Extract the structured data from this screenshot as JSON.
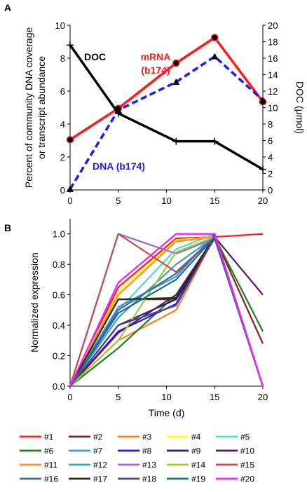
{
  "chart_data": [
    {
      "panel": "A",
      "type": "line",
      "x": [
        0,
        5,
        11,
        15,
        20
      ],
      "xlim": [
        0,
        20
      ],
      "xticks": [
        "0",
        "5",
        "10",
        "15",
        "20"
      ],
      "ylim": [
        0,
        10
      ],
      "yticks": [
        "0",
        "2",
        "4",
        "6",
        "8",
        "10"
      ],
      "y2lim": [
        0,
        20
      ],
      "y2ticks": [
        "0",
        "2",
        "4",
        "6",
        "8",
        "10",
        "12",
        "14",
        "16",
        "18",
        "20"
      ],
      "ylabel_line1": "Percent of community DNA coverage",
      "ylabel_line2": "or transcript abundance",
      "y2label": "DOC (μmol)",
      "series": [
        {
          "name": "mRNA (b174)",
          "label_line1": "mRNA",
          "label_line2": "(b174)",
          "axis": "left",
          "color": "#ff1a1a",
          "marker": "circle",
          "dash": "solid",
          "values": [
            3.05,
            4.95,
            7.7,
            9.25,
            5.35
          ]
        },
        {
          "name": "DNA (b174)",
          "label_line1": "DNA (b174)",
          "axis": "left",
          "color": "#1a1aff",
          "marker": "triangle",
          "dash": "dashed",
          "values": [
            0.05,
            4.85,
            6.55,
            8.1,
            5.45
          ]
        },
        {
          "name": "DOC",
          "label_line1": "DOC",
          "axis": "right",
          "color": "#000000",
          "marker": "plus",
          "dash": "solid",
          "values": [
            17.6,
            9.3,
            5.9,
            5.9,
            2.5
          ]
        }
      ]
    },
    {
      "panel": "B",
      "type": "line",
      "x": [
        0,
        5,
        11,
        15,
        20
      ],
      "xlim": [
        0,
        20
      ],
      "xticks": [
        "0",
        "5",
        "10",
        "15",
        "20"
      ],
      "ylim": [
        0,
        1.1
      ],
      "yticks": [
        "0.0",
        "0.2",
        "0.4",
        "0.6",
        "0.8",
        "1.0"
      ],
      "xlabel": "Time (d)",
      "ylabel": "Normalized expression",
      "series": [
        {
          "name": "#1",
          "color": "#ff1a1a",
          "values": [
            0,
            0.65,
            0.97,
            0.98,
            1.0
          ]
        },
        {
          "name": "#2",
          "color": "#7f1f1f",
          "values": [
            0,
            0.57,
            0.57,
            0.98,
            0.28
          ]
        },
        {
          "name": "#3",
          "color": "#ff7f1a",
          "values": [
            0,
            0.3,
            0.5,
            0.98,
            0.0
          ]
        },
        {
          "name": "#4",
          "color": "#ffff00",
          "values": [
            0,
            0.62,
            0.96,
            0.98,
            0.0
          ]
        },
        {
          "name": "#5",
          "color": "#4fe0c0",
          "values": [
            0,
            0.5,
            0.9,
            1.0,
            0.0
          ]
        },
        {
          "name": "#6",
          "color": "#1f7f1f",
          "values": [
            0,
            0.25,
            0.6,
            0.98,
            0.36
          ]
        },
        {
          "name": "#7",
          "color": "#4a90e0",
          "values": [
            0,
            0.52,
            0.72,
            1.0,
            0.0
          ]
        },
        {
          "name": "#8",
          "color": "#1a1aff",
          "values": [
            0,
            0.36,
            0.54,
            1.0,
            0.0
          ]
        },
        {
          "name": "#9",
          "color": "#1f1f7f",
          "values": [
            0,
            0.4,
            0.57,
            0.97,
            0.0
          ]
        },
        {
          "name": "#10",
          "color": "#5a1a5a",
          "values": [
            0,
            0.35,
            0.6,
            0.98,
            0.6
          ]
        },
        {
          "name": "#11",
          "color": "#ff8c3a",
          "values": [
            0,
            0.6,
            0.95,
            0.98,
            0.0
          ]
        },
        {
          "name": "#12",
          "color": "#3aa0c8",
          "values": [
            0,
            0.45,
            0.8,
            0.98,
            0.0
          ]
        },
        {
          "name": "#13",
          "color": "#9a6ad0",
          "values": [
            0,
            1.0,
            0.87,
            0.97,
            0.0
          ]
        },
        {
          "name": "#14",
          "color": "#9acd32",
          "values": [
            0,
            0.3,
            0.88,
            0.98,
            0.0
          ]
        },
        {
          "name": "#15",
          "color": "#c0504d",
          "values": [
            0,
            1.0,
            0.75,
            0.98,
            0.0
          ]
        },
        {
          "name": "#16",
          "color": "#3a6ab0",
          "values": [
            0,
            0.5,
            0.74,
            0.98,
            0.0
          ]
        },
        {
          "name": "#17",
          "color": "#2b2b10",
          "values": [
            0,
            0.57,
            0.58,
            0.98,
            0.0
          ]
        },
        {
          "name": "#18",
          "color": "#5a3a8a",
          "values": [
            0,
            0.4,
            0.53,
            0.98,
            0.0
          ]
        },
        {
          "name": "#19",
          "color": "#1a7080",
          "values": [
            0,
            0.48,
            0.7,
            0.98,
            0.0
          ]
        },
        {
          "name": "#20",
          "color": "#ff1aff",
          "values": [
            0,
            0.68,
            1.0,
            1.0,
            0.0
          ]
        }
      ]
    }
  ]
}
